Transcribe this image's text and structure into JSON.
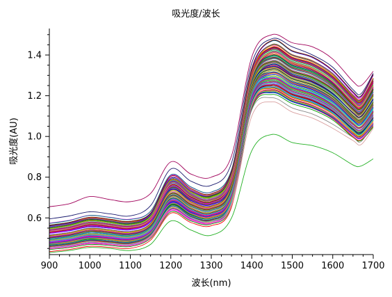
{
  "chart_data": {
    "type": "line",
    "title": "吸光度/波长",
    "xlabel": "波长(nm)",
    "ylabel": "吸光度(AU)",
    "xlim": [
      900,
      1700
    ],
    "ylim": [
      0.42,
      1.53
    ],
    "xticks": [
      900,
      1000,
      1100,
      1200,
      1300,
      1400,
      1500,
      1600,
      1700
    ],
    "yticks": [
      0.6,
      0.8,
      1.0,
      1.2,
      1.4
    ],
    "xtick_labels": [
      "900",
      "1000",
      "1100",
      "1200",
      "1300",
      "1400",
      "1500",
      "1600",
      "1700"
    ],
    "ytick_labels": [
      "0.6",
      "0.8",
      "1.0",
      "1.2",
      "1.4"
    ],
    "grid": false,
    "legend": "none",
    "x": [
      900,
      950,
      1000,
      1050,
      1100,
      1150,
      1200,
      1250,
      1300,
      1350,
      1400,
      1450,
      1500,
      1550,
      1600,
      1650,
      1670,
      1700
    ],
    "series_shape": [
      0.0,
      0.018,
      0.036,
      0.025,
      0.02,
      0.05,
      0.14,
      0.09,
      0.07,
      0.14,
      0.57,
      0.95,
      0.88,
      0.83,
      0.75,
      0.61,
      0.58,
      0.72
    ],
    "series": [
      {
        "values": [
          0.655,
          0.67,
          0.705,
          0.69,
          0.68,
          0.72,
          0.875,
          0.815,
          0.8,
          0.905,
          1.39,
          1.5,
          1.46,
          1.44,
          1.38,
          1.27,
          1.25,
          1.32
        ],
        "color": "#a0005a"
      },
      {
        "values": [
          0.595,
          0.61,
          0.63,
          0.62,
          0.61,
          0.66,
          0.84,
          0.78,
          0.76,
          0.87,
          1.36,
          1.48,
          1.44,
          1.4,
          1.34,
          1.23,
          1.21,
          1.31
        ],
        "color": "#1a1a6e"
      },
      {
        "values": [
          0.56,
          0.575,
          0.595,
          0.585,
          0.575,
          0.62,
          0.79,
          0.73,
          0.71,
          0.82,
          1.32,
          1.45,
          1.4,
          1.37,
          1.31,
          1.2,
          1.18,
          1.28
        ],
        "color": "#4b2c8a"
      },
      {
        "values": [
          0.43,
          0.44,
          0.455,
          0.45,
          0.44,
          0.47,
          0.585,
          0.54,
          0.515,
          0.6,
          0.93,
          1.01,
          0.97,
          0.955,
          0.92,
          0.86,
          0.855,
          0.89
        ],
        "color": "#22b022"
      },
      {
        "values": [
          0.455,
          0.465,
          0.485,
          0.475,
          0.47,
          0.51,
          0.65,
          0.6,
          0.58,
          0.66,
          1.1,
          1.17,
          1.12,
          1.09,
          1.04,
          0.98,
          0.96,
          1.04
        ],
        "color": "#d9a0a0"
      },
      {
        "values": [
          0.47,
          0.48,
          0.5,
          0.49,
          0.485,
          0.525,
          0.67,
          0.62,
          0.6,
          0.69,
          1.13,
          1.19,
          1.14,
          1.11,
          1.06,
          0.995,
          0.975,
          1.06
        ],
        "color": "#888888"
      }
    ],
    "band": {
      "count": 130,
      "low": [
        0.45,
        0.46,
        0.475,
        0.47,
        0.465,
        0.505,
        0.635,
        0.59,
        0.575,
        0.665,
        1.14,
        1.21,
        1.165,
        1.135,
        1.085,
        1.0,
        0.985,
        1.05
      ],
      "high": [
        0.565,
        0.58,
        0.605,
        0.595,
        0.585,
        0.625,
        0.805,
        0.745,
        0.72,
        0.83,
        1.33,
        1.465,
        1.415,
        1.385,
        1.32,
        1.215,
        1.195,
        1.3
      ],
      "palette": [
        "#ff0000",
        "#00a000",
        "#0000ff",
        "#ff00ff",
        "#00c0c0",
        "#c8c800",
        "#ff8000",
        "#8000ff",
        "#008080",
        "#800000",
        "#808000",
        "#ff6699",
        "#3399ff",
        "#66cc33",
        "#9966cc",
        "#cc3300",
        "#006600",
        "#ffcc00",
        "#0066cc",
        "#cc0099",
        "#999999",
        "#33cccc",
        "#663300",
        "#000080"
      ]
    }
  }
}
